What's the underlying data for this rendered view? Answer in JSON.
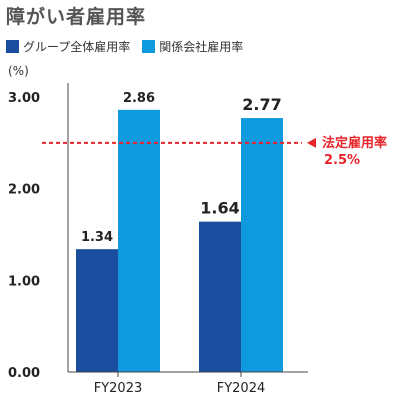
{
  "title": "障がい者雇用率",
  "legend": {
    "series1": "グループ全体雇用率",
    "series2": "関係会社雇用率"
  },
  "unit": "(%)",
  "colors": {
    "series1": "#1b4d9e",
    "series2": "#0f9ae0",
    "reference": "#e8242b"
  },
  "chart_data": {
    "type": "bar",
    "categories": [
      "FY2023",
      "FY2024"
    ],
    "series": [
      {
        "name": "グループ全体雇用率",
        "values": [
          1.34,
          1.64
        ],
        "labels": [
          "1.34",
          "1.64"
        ]
      },
      {
        "name": "関係会社雇用率",
        "values": [
          2.86,
          2.77
        ],
        "labels": [
          "2.86",
          "2.77"
        ]
      }
    ],
    "yticks": [
      "0.00",
      "1.00",
      "2.00",
      "3.00"
    ],
    "ylim": [
      0,
      3.0
    ],
    "reference_line": {
      "value": 2.5,
      "label_line1": "法定雇用率",
      "label_line2": "2.5%"
    },
    "grid": false,
    "legend_position": "top-left"
  }
}
